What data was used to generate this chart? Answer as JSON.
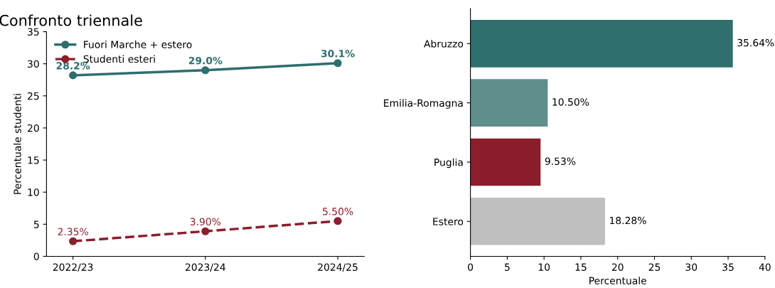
{
  "chart_data": [
    {
      "type": "line",
      "title": "Confronto triennale",
      "ylabel": "Percentuale studenti",
      "categories": [
        "2022/23",
        "2023/24",
        "2024/25"
      ],
      "series": [
        {
          "name": "Fuori Marche + estero",
          "color": "#2e6e6e",
          "values": [
            28.2,
            29.0,
            30.1
          ],
          "value_labels": [
            "28.2%",
            "29.0%",
            "30.1%"
          ],
          "line_style": "solid"
        },
        {
          "name": "Studenti esteri",
          "color": "#8b1e2d",
          "values": [
            2.35,
            3.9,
            5.5
          ],
          "value_labels": [
            "2.35%",
            "3.90%",
            "5.50%"
          ],
          "line_style": "dashed"
        }
      ],
      "ylim": [
        0,
        35
      ],
      "yticks": [
        0,
        5,
        10,
        15,
        20,
        25,
        30,
        35
      ],
      "marker": "circle",
      "legend": "top left",
      "grid": false
    },
    {
      "type": "bar",
      "orientation": "horizontal",
      "xlabel": "Percentuale",
      "categories": [
        "Abruzzo",
        "Emilia-Romagna",
        "Puglia",
        "Estero"
      ],
      "values": [
        35.64,
        10.5,
        9.53,
        18.28
      ],
      "colors": [
        "#316e6e",
        "#5e8f8d",
        "#8b1e2d",
        "#bfbfbf"
      ],
      "value_labels": [
        "35.64%",
        "10.50%",
        "9.53%",
        "18.28%"
      ],
      "xlim": [
        0,
        40
      ],
      "xticks": [
        0,
        5,
        10,
        15,
        20,
        25,
        30,
        35,
        40
      ],
      "grid": false
    }
  ]
}
